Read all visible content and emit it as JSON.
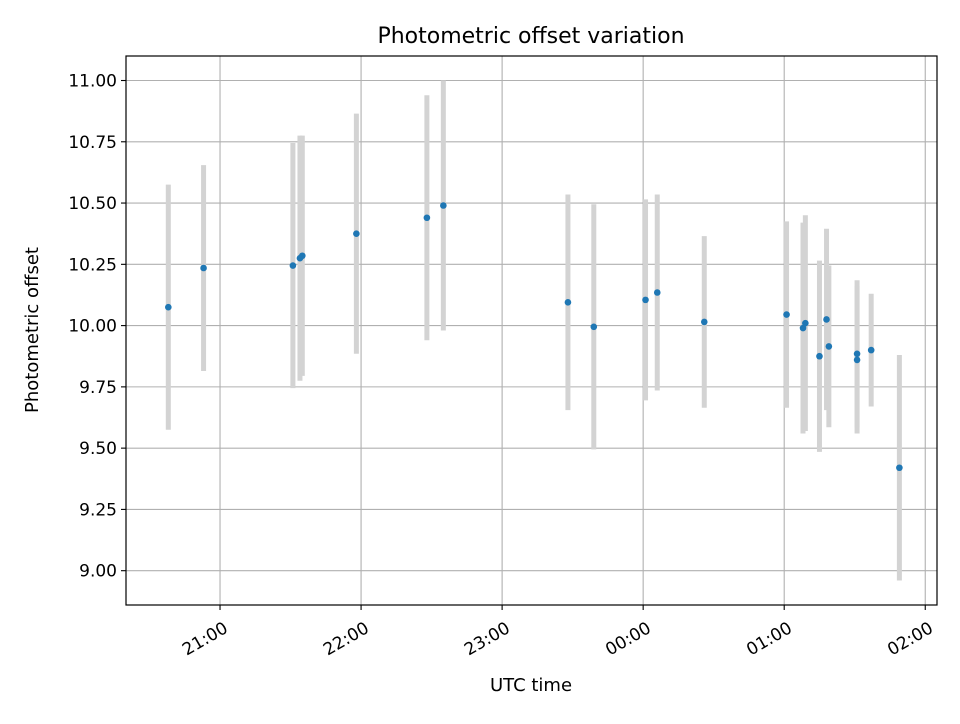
{
  "chart_data": {
    "type": "scatter",
    "title": "Photometric offset variation",
    "xlabel": "UTC time",
    "ylabel": "Photometric offset",
    "x_ticks": [
      "21:00",
      "22:00",
      "23:00",
      "00:00",
      "01:00",
      "02:00"
    ],
    "y_ticks": [
      "9.00",
      "9.25",
      "9.50",
      "9.75",
      "10.00",
      "10.25",
      "10.50",
      "10.75",
      "11.00"
    ],
    "xlim": [
      "20:20",
      "02:05"
    ],
    "ylim": [
      8.86,
      11.1
    ],
    "grid": true,
    "point_color": "#1f77b4",
    "errorbar_color": "#d3d3d3",
    "series": [
      {
        "points": [
          {
            "x": "20:38",
            "y": 10.075,
            "yerr": 0.5
          },
          {
            "x": "20:53",
            "y": 10.235,
            "yerr": 0.42
          },
          {
            "x": "21:31",
            "y": 10.245,
            "yerr": 0.5
          },
          {
            "x": "21:34",
            "y": 10.275,
            "yerr": 0.5
          },
          {
            "x": "21:35",
            "y": 10.285,
            "yerr": 0.49
          },
          {
            "x": "21:58",
            "y": 10.375,
            "yerr": 0.49
          },
          {
            "x": "22:28",
            "y": 10.44,
            "yerr": 0.5
          },
          {
            "x": "22:35",
            "y": 10.49,
            "yerr": 0.51
          },
          {
            "x": "23:28",
            "y": 10.095,
            "yerr": 0.44
          },
          {
            "x": "23:39",
            "y": 9.995,
            "yerr": 0.5
          },
          {
            "x": "00:01",
            "y": 10.105,
            "yerr": 0.41
          },
          {
            "x": "00:06",
            "y": 10.135,
            "yerr": 0.4
          },
          {
            "x": "00:26",
            "y": 10.015,
            "yerr": 0.35
          },
          {
            "x": "01:01",
            "y": 10.045,
            "yerr": 0.38
          },
          {
            "x": "01:08",
            "y": 9.99,
            "yerr": 0.43
          },
          {
            "x": "01:09",
            "y": 10.01,
            "yerr": 0.44
          },
          {
            "x": "01:15",
            "y": 9.875,
            "yerr": 0.39
          },
          {
            "x": "01:18",
            "y": 10.025,
            "yerr": 0.37
          },
          {
            "x": "01:19",
            "y": 9.915,
            "yerr": 0.33
          },
          {
            "x": "01:31",
            "y": 9.86,
            "yerr": 0.3
          },
          {
            "x": "01:31",
            "y": 9.885,
            "yerr": 0.3
          },
          {
            "x": "01:37",
            "y": 9.9,
            "yerr": 0.23
          },
          {
            "x": "01:49",
            "y": 9.42,
            "yerr": 0.46
          }
        ]
      }
    ]
  }
}
